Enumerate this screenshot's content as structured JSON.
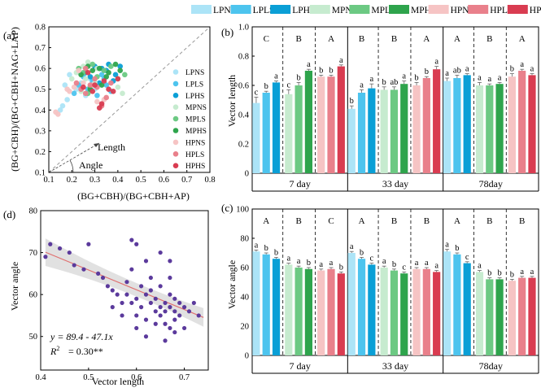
{
  "legend": {
    "entries": [
      {
        "name": "LPNS",
        "color": "#ace4f7"
      },
      {
        "name": "LPLS",
        "color": "#4dc4ee"
      },
      {
        "name": "LPHS",
        "color": "#0a9fd6"
      },
      {
        "name": "MPNS",
        "color": "#c6ebcf"
      },
      {
        "name": "MPLS",
        "color": "#6cc983"
      },
      {
        "name": "MPHS",
        "color": "#2ea44c"
      },
      {
        "name": "HPNS",
        "color": "#f6c4c4"
      },
      {
        "name": "HPLS",
        "color": "#e9808b"
      },
      {
        "name": "HPHS",
        "color": "#d93c51"
      }
    ]
  },
  "chart_data": [
    {
      "id": "a",
      "panel_label": "(a)",
      "type": "scatter",
      "xlabel": "(BG+CBH)/(BG+CBH+AP)",
      "ylabel": "(BG+CBH)/(BG+CBH+NAG+LAP)",
      "xlim": [
        0.1,
        0.8
      ],
      "ylim": [
        0.1,
        0.8
      ],
      "xticks": [
        "0.1",
        "0.2",
        "0.3",
        "0.4",
        "0.5",
        "0.6",
        "0.7",
        "0.8"
      ],
      "yticks": [
        "0.1",
        "0.2",
        "0.3",
        "0.4",
        "0.5",
        "0.6",
        "0.7",
        "0.8"
      ],
      "annotations": {
        "length": "Length",
        "angle": "Angle"
      },
      "reference_line": "1:1 dashed",
      "series": [
        {
          "name": "LPNS",
          "points": [
            [
              0.15,
              0.4
            ],
            [
              0.16,
              0.42
            ],
            [
              0.17,
              0.52
            ],
            [
              0.19,
              0.57
            ],
            [
              0.18,
              0.45
            ],
            [
              0.22,
              0.5
            ],
            [
              0.24,
              0.53
            ],
            [
              0.26,
              0.47
            ],
            [
              0.28,
              0.55
            ],
            [
              0.3,
              0.5
            ]
          ]
        },
        {
          "name": "LPLS",
          "points": [
            [
              0.21,
              0.48
            ],
            [
              0.23,
              0.52
            ],
            [
              0.25,
              0.56
            ],
            [
              0.27,
              0.5
            ],
            [
              0.29,
              0.54
            ],
            [
              0.31,
              0.47
            ],
            [
              0.33,
              0.57
            ],
            [
              0.35,
              0.52
            ],
            [
              0.37,
              0.49
            ],
            [
              0.34,
              0.55
            ]
          ]
        },
        {
          "name": "LPHS",
          "points": [
            [
              0.26,
              0.58
            ],
            [
              0.3,
              0.61
            ],
            [
              0.33,
              0.6
            ],
            [
              0.36,
              0.62
            ],
            [
              0.39,
              0.57
            ],
            [
              0.41,
              0.61
            ],
            [
              0.38,
              0.54
            ],
            [
              0.35,
              0.59
            ],
            [
              0.28,
              0.56
            ],
            [
              0.32,
              0.53
            ]
          ]
        },
        {
          "name": "MPNS",
          "points": [
            [
              0.2,
              0.55
            ],
            [
              0.22,
              0.58
            ],
            [
              0.25,
              0.61
            ],
            [
              0.27,
              0.63
            ],
            [
              0.24,
              0.49
            ],
            [
              0.3,
              0.53
            ],
            [
              0.4,
              0.51
            ],
            [
              0.42,
              0.48
            ],
            [
              0.26,
              0.55
            ],
            [
              0.31,
              0.6
            ]
          ]
        },
        {
          "name": "MPLS",
          "points": [
            [
              0.23,
              0.6
            ],
            [
              0.25,
              0.58
            ],
            [
              0.28,
              0.51
            ],
            [
              0.31,
              0.56
            ],
            [
              0.34,
              0.59
            ],
            [
              0.37,
              0.61
            ],
            [
              0.4,
              0.55
            ],
            [
              0.43,
              0.57
            ],
            [
              0.29,
              0.62
            ],
            [
              0.27,
              0.48
            ]
          ]
        },
        {
          "name": "MPHS",
          "points": [
            [
              0.24,
              0.57
            ],
            [
              0.27,
              0.61
            ],
            [
              0.29,
              0.59
            ],
            [
              0.32,
              0.6
            ],
            [
              0.35,
              0.56
            ],
            [
              0.39,
              0.62
            ],
            [
              0.41,
              0.59
            ],
            [
              0.33,
              0.52
            ],
            [
              0.28,
              0.5
            ],
            [
              0.36,
              0.58
            ]
          ]
        },
        {
          "name": "HPNS",
          "points": [
            [
              0.13,
              0.39
            ],
            [
              0.14,
              0.38
            ],
            [
              0.19,
              0.49
            ],
            [
              0.21,
              0.51
            ],
            [
              0.25,
              0.53
            ],
            [
              0.23,
              0.59
            ],
            [
              0.31,
              0.44
            ],
            [
              0.34,
              0.45
            ],
            [
              0.29,
              0.52
            ],
            [
              0.18,
              0.5
            ]
          ]
        },
        {
          "name": "HPLS",
          "points": [
            [
              0.22,
              0.53
            ],
            [
              0.24,
              0.5
            ],
            [
              0.26,
              0.48
            ],
            [
              0.28,
              0.52
            ],
            [
              0.31,
              0.51
            ],
            [
              0.33,
              0.42
            ],
            [
              0.35,
              0.46
            ],
            [
              0.37,
              0.53
            ],
            [
              0.3,
              0.55
            ],
            [
              0.26,
              0.6
            ]
          ]
        },
        {
          "name": "HPHS",
          "points": [
            [
              0.25,
              0.51
            ],
            [
              0.27,
              0.58
            ],
            [
              0.3,
              0.52
            ],
            [
              0.32,
              0.41
            ],
            [
              0.33,
              0.43
            ],
            [
              0.36,
              0.5
            ],
            [
              0.38,
              0.49
            ],
            [
              0.34,
              0.54
            ],
            [
              0.4,
              0.55
            ],
            [
              0.29,
              0.49
            ]
          ]
        }
      ]
    },
    {
      "id": "b",
      "panel_label": "(b)",
      "type": "bar",
      "ylabel": "Vector length",
      "ylim": [
        0,
        1.0
      ],
      "yticks": [
        "0",
        "0.2",
        "0.4",
        "0.6",
        "0.8",
        "1.0"
      ],
      "groups": [
        "7 day",
        "33 day",
        "78day"
      ],
      "categories": [
        "LPNS",
        "LPLS",
        "LPHS",
        "MPNS",
        "MPLS",
        "MPHS",
        "HPNS",
        "HPLS",
        "HPHS"
      ],
      "values": [
        [
          0.48,
          0.55,
          0.62,
          0.54,
          0.6,
          0.7,
          0.66,
          0.66,
          0.73
        ],
        [
          0.44,
          0.55,
          0.58,
          0.57,
          0.57,
          0.61,
          0.6,
          0.65,
          0.71
        ],
        [
          0.63,
          0.65,
          0.67,
          0.6,
          0.6,
          0.61,
          0.66,
          0.7,
          0.67
        ]
      ],
      "errors": [
        [
          0.04,
          0.01,
          0.01,
          0.03,
          0.02,
          0.01,
          0.01,
          0.01,
          0.01
        ],
        [
          0.02,
          0.02,
          0.03,
          0.02,
          0.02,
          0.02,
          0.02,
          0.01,
          0.02
        ],
        [
          0.02,
          0.02,
          0.01,
          0.02,
          0.01,
          0.01,
          0.02,
          0.01,
          0.01
        ]
      ],
      "bar_letters": [
        [
          "c",
          "b",
          "a",
          "c",
          "b",
          "a",
          "b",
          "b",
          "a"
        ],
        [
          "b",
          "a",
          "a",
          "b",
          "ab",
          "a",
          "b",
          "b",
          "a"
        ],
        [
          "a",
          "ab",
          "a",
          "a",
          "a",
          "a",
          "b",
          "a",
          "a"
        ]
      ],
      "group_letters": [
        [
          "C",
          "B",
          "A"
        ],
        [
          "B",
          "B",
          "A"
        ],
        [
          "A",
          "B",
          "A"
        ]
      ]
    },
    {
      "id": "c",
      "panel_label": "(c)",
      "type": "bar",
      "ylabel": "Vector angle",
      "ylim": [
        0,
        100
      ],
      "yticks": [
        "0",
        "20",
        "40",
        "60",
        "80",
        "100"
      ],
      "groups": [
        "7 day",
        "33 day",
        "78day"
      ],
      "categories": [
        "LPNS",
        "LPLS",
        "LPHS",
        "MPNS",
        "MPLS",
        "MPHS",
        "HPNS",
        "HPLS",
        "HPHS"
      ],
      "values": [
        [
          71,
          69,
          66,
          62,
          60,
          59,
          58,
          59,
          56
        ],
        [
          70,
          66,
          62,
          60,
          58,
          56,
          59,
          59,
          57
        ],
        [
          71,
          69,
          63,
          57,
          52,
          52,
          51,
          53,
          53
        ]
      ],
      "errors": [
        [
          1,
          1,
          1,
          1,
          1,
          1,
          1,
          1,
          1
        ],
        [
          1,
          1,
          1,
          1,
          1,
          1,
          1,
          1,
          1
        ],
        [
          1.5,
          1,
          1,
          1,
          1,
          1,
          1,
          1,
          1
        ]
      ],
      "bar_letters": [
        [
          "a",
          "b",
          "b",
          "a",
          "a",
          "b",
          "a",
          "a",
          "b"
        ],
        [
          "a",
          "b",
          "c",
          "a",
          "b",
          "c",
          "a",
          "a",
          "a"
        ],
        [
          "a",
          "b",
          "c",
          "a",
          "b",
          "b",
          "b",
          "a",
          "a"
        ]
      ],
      "group_letters": [
        [
          "A",
          "B",
          "C"
        ],
        [
          "A",
          "B",
          "B"
        ],
        [
          "A",
          "B",
          "B"
        ]
      ]
    },
    {
      "id": "d",
      "panel_label": "(d)",
      "type": "scatter",
      "xlabel": "Vector length",
      "ylabel": "Vector angle",
      "xlim": [
        0.4,
        0.75
      ],
      "ylim": [
        42,
        80
      ],
      "xticks": [
        "0.4",
        "0.5",
        "0.6",
        "0.7"
      ],
      "yticks": [
        "50",
        "60",
        "70",
        "80"
      ],
      "regression": {
        "intercept": 89.4,
        "slope": -47.1
      },
      "equation": "y = 89.4 - 47.1x",
      "r2_label": "R",
      "r2_value": "= 0.30**",
      "points": [
        [
          0.41,
          69
        ],
        [
          0.42,
          72
        ],
        [
          0.44,
          71
        ],
        [
          0.46,
          70
        ],
        [
          0.47,
          67
        ],
        [
          0.49,
          66
        ],
        [
          0.5,
          72
        ],
        [
          0.52,
          65
        ],
        [
          0.53,
          64
        ],
        [
          0.54,
          62
        ],
        [
          0.55,
          61
        ],
        [
          0.55,
          57
        ],
        [
          0.56,
          60
        ],
        [
          0.57,
          58
        ],
        [
          0.57,
          55
        ],
        [
          0.58,
          63
        ],
        [
          0.58,
          60
        ],
        [
          0.59,
          73
        ],
        [
          0.59,
          66
        ],
        [
          0.59,
          58
        ],
        [
          0.6,
          72
        ],
        [
          0.6,
          59
        ],
        [
          0.6,
          55
        ],
        [
          0.6,
          52
        ],
        [
          0.61,
          57
        ],
        [
          0.61,
          62
        ],
        [
          0.62,
          68
        ],
        [
          0.62,
          60
        ],
        [
          0.62,
          54
        ],
        [
          0.62,
          50
        ],
        [
          0.63,
          58
        ],
        [
          0.63,
          64
        ],
        [
          0.63,
          61
        ],
        [
          0.64,
          56
        ],
        [
          0.64,
          59
        ],
        [
          0.64,
          53
        ],
        [
          0.65,
          55
        ],
        [
          0.65,
          70
        ],
        [
          0.65,
          62
        ],
        [
          0.65,
          57
        ],
        [
          0.66,
          58
        ],
        [
          0.66,
          49
        ],
        [
          0.66,
          53
        ],
        [
          0.66,
          56
        ],
        [
          0.67,
          60
        ],
        [
          0.67,
          64
        ],
        [
          0.67,
          57
        ],
        [
          0.67,
          52
        ],
        [
          0.67,
          68
        ],
        [
          0.68,
          59
        ],
        [
          0.68,
          56
        ],
        [
          0.68,
          54
        ],
        [
          0.68,
          51
        ],
        [
          0.69,
          58
        ],
        [
          0.69,
          55
        ],
        [
          0.7,
          57
        ],
        [
          0.7,
          52
        ],
        [
          0.71,
          56
        ],
        [
          0.72,
          58
        ],
        [
          0.73,
          55
        ]
      ]
    }
  ]
}
